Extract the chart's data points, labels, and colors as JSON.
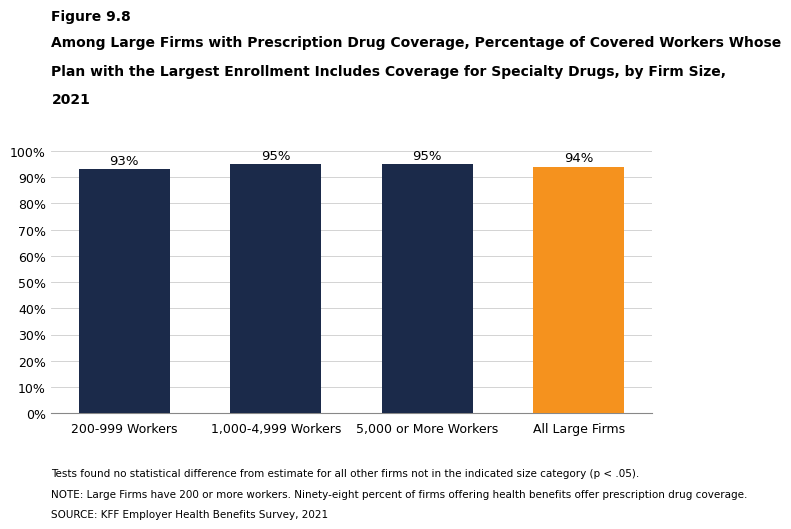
{
  "categories": [
    "200-999 Workers",
    "1,000-4,999 Workers",
    "5,000 or More Workers",
    "All Large Firms"
  ],
  "values": [
    93,
    95,
    95,
    94
  ],
  "labels": [
    "93%",
    "95%",
    "95%",
    "94%"
  ],
  "bar_colors": [
    "#1b2a4a",
    "#1b2a4a",
    "#1b2a4a",
    "#f5921e"
  ],
  "title_line1": "Figure 9.8",
  "title_line2": "Among Large Firms with Prescription Drug Coverage, Percentage of Covered Workers Whose",
  "title_line3": "Plan with the Largest Enrollment Includes Coverage for Specialty Drugs, by Firm Size,",
  "title_line4": "2021",
  "ylim": [
    0,
    100
  ],
  "ytick_values": [
    0,
    10,
    20,
    30,
    40,
    50,
    60,
    70,
    80,
    90,
    100
  ],
  "ytick_labels": [
    "0%",
    "10%",
    "20%",
    "30%",
    "40%",
    "50%",
    "60%",
    "70%",
    "80%",
    "90%",
    "100%"
  ],
  "footnote1": "Tests found no statistical difference from estimate for all other firms not in the indicated size category (p < .05).",
  "footnote2": "NOTE: Large Firms have 200 or more workers. Ninety-eight percent of firms offering health benefits offer prescription drug coverage.",
  "footnote3": "SOURCE: KFF Employer Health Benefits Survey, 2021",
  "background_color": "#ffffff",
  "bar_width": 0.6,
  "label_fontsize": 9.5,
  "tick_fontsize": 9,
  "footnote_fontsize": 7.5,
  "title1_fontsize": 10,
  "title2_fontsize": 10
}
